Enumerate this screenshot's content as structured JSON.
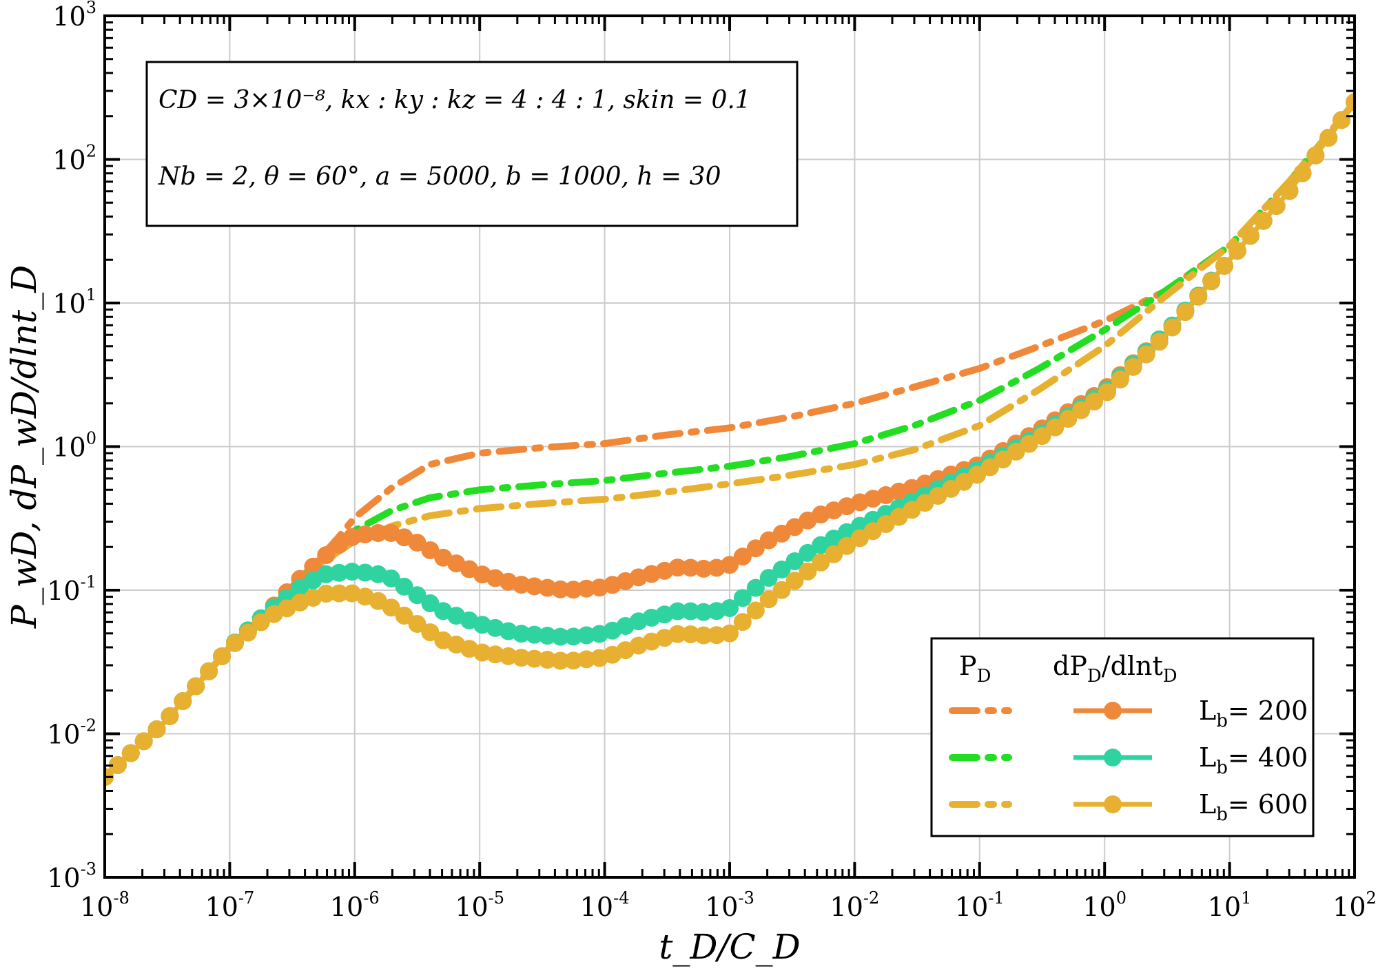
{
  "chart_data": {
    "type": "line",
    "xscale": "log",
    "yscale": "log",
    "xlim": [
      1e-08,
      100
    ],
    "ylim": [
      0.001,
      1000
    ],
    "grid": true,
    "x_ticks": [
      {
        "value": 1e-08,
        "base": "10",
        "exp": "-8"
      },
      {
        "value": 1e-07,
        "base": "10",
        "exp": "-7"
      },
      {
        "value": 1e-06,
        "base": "10",
        "exp": "-6"
      },
      {
        "value": 1e-05,
        "base": "10",
        "exp": "-5"
      },
      {
        "value": 0.0001,
        "base": "10",
        "exp": "-4"
      },
      {
        "value": 0.001,
        "base": "10",
        "exp": "-3"
      },
      {
        "value": 0.01,
        "base": "10",
        "exp": "-2"
      },
      {
        "value": 0.1,
        "base": "10",
        "exp": "-1"
      },
      {
        "value": 1,
        "base": "10",
        "exp": "0"
      },
      {
        "value": 10,
        "base": "10",
        "exp": "1"
      },
      {
        "value": 100,
        "base": "10",
        "exp": "2"
      }
    ],
    "y_ticks": [
      {
        "value": 0.001,
        "base": "10",
        "exp": "-3"
      },
      {
        "value": 0.01,
        "base": "10",
        "exp": "-2"
      },
      {
        "value": 0.1,
        "base": "10",
        "exp": "-1"
      },
      {
        "value": 1,
        "base": "10",
        "exp": "0"
      },
      {
        "value": 10,
        "base": "10",
        "exp": "1"
      },
      {
        "value": 100,
        "base": "10",
        "exp": "2"
      },
      {
        "value": 1000,
        "base": "10",
        "exp": "3"
      }
    ],
    "xlabel": "t_D/C_D",
    "ylabel": "P_wD, dP_wD/dlnt_D",
    "annotation_lines": [
      "CD = 3×10⁻⁸, kx : ky : kz = 4 : 4 : 1, skin = 0.1",
      "Nb = 2, θ = 60°, a = 5000, b = 1000, h = 30"
    ],
    "legend": {
      "placement": "bottom-right",
      "header_pd": {
        "main": "P",
        "sub": "D"
      },
      "header_dpd": {
        "main": "dP",
        "sub1": "D",
        "mid": "/dlnt",
        "sub2": "D"
      },
      "entries": [
        {
          "prefix": "L",
          "sub": "b",
          "value": "= 200"
        },
        {
          "prefix": "L",
          "sub": "b",
          "value": "= 400"
        },
        {
          "prefix": "L",
          "sub": "b",
          "value": "= 600"
        }
      ]
    },
    "series": [
      {
        "kind": "pressure",
        "style": "dash-dot",
        "color": "#F0883A",
        "x": [
          1e-08,
          3e-08,
          1e-07,
          2e-07,
          4e-07,
          7e-07,
          1e-06,
          2e-06,
          4e-06,
          1e-05,
          3e-05,
          0.0001,
          0.0003,
          0.001,
          0.003,
          0.01,
          0.03,
          0.1,
          0.3,
          1,
          3,
          10,
          30,
          100
        ],
        "y": [
          0.005,
          0.012,
          0.04,
          0.07,
          0.13,
          0.22,
          0.32,
          0.52,
          0.75,
          0.9,
          0.98,
          1.05,
          1.2,
          1.35,
          1.6,
          2.0,
          2.6,
          3.5,
          5.0,
          7.5,
          12,
          25,
          70,
          250
        ]
      },
      {
        "kind": "pressure",
        "style": "dash-dot",
        "color": "#22DD22",
        "x": [
          1e-08,
          3e-08,
          1e-07,
          2e-07,
          4e-07,
          7e-07,
          1e-06,
          2e-06,
          4e-06,
          1e-05,
          3e-05,
          0.0001,
          0.0003,
          0.001,
          0.003,
          0.01,
          0.03,
          0.1,
          0.3,
          1,
          3,
          10,
          30,
          100
        ],
        "y": [
          0.005,
          0.012,
          0.04,
          0.07,
          0.13,
          0.2,
          0.26,
          0.36,
          0.44,
          0.5,
          0.54,
          0.58,
          0.65,
          0.73,
          0.85,
          1.05,
          1.4,
          2.1,
          3.5,
          6.5,
          12,
          25,
          70,
          250
        ]
      },
      {
        "kind": "pressure",
        "style": "dash-dot",
        "color": "#E8B030",
        "x": [
          1e-08,
          3e-08,
          1e-07,
          2e-07,
          4e-07,
          7e-07,
          1e-06,
          2e-06,
          4e-06,
          1e-05,
          3e-05,
          0.0001,
          0.0003,
          0.001,
          0.003,
          0.01,
          0.03,
          0.1,
          0.3,
          1,
          3,
          10,
          30,
          100
        ],
        "y": [
          0.005,
          0.012,
          0.04,
          0.07,
          0.12,
          0.18,
          0.22,
          0.28,
          0.33,
          0.37,
          0.4,
          0.43,
          0.48,
          0.55,
          0.63,
          0.75,
          0.95,
          1.4,
          2.5,
          5.0,
          11,
          25,
          70,
          250
        ]
      },
      {
        "kind": "derivative",
        "style": "line-markers",
        "color": "#F0883A",
        "x": [
          1e-08,
          3e-08,
          1e-07,
          2e-07,
          4e-07,
          7e-07,
          1e-06,
          1.5e-06,
          2e-06,
          3e-06,
          5e-06,
          1e-05,
          2e-05,
          5e-05,
          0.0001,
          0.0002,
          0.0004,
          0.0007,
          0.001,
          0.002,
          0.005,
          0.01,
          0.03,
          0.1,
          0.3,
          1,
          3,
          10,
          30,
          100
        ],
        "y": [
          0.005,
          0.012,
          0.04,
          0.07,
          0.13,
          0.2,
          0.24,
          0.25,
          0.25,
          0.22,
          0.17,
          0.13,
          0.11,
          0.1,
          0.105,
          0.125,
          0.145,
          0.14,
          0.15,
          0.22,
          0.33,
          0.4,
          0.52,
          0.75,
          1.3,
          2.5,
          6.0,
          20,
          60,
          250
        ]
      },
      {
        "kind": "derivative",
        "style": "line-markers",
        "color": "#2ED3A0",
        "x": [
          1e-08,
          3e-08,
          1e-07,
          2e-07,
          4e-07,
          6e-07,
          1e-06,
          1.5e-06,
          2e-06,
          3e-06,
          5e-06,
          1e-05,
          2e-05,
          5e-05,
          0.0001,
          0.0002,
          0.0004,
          0.0007,
          0.001,
          0.002,
          0.005,
          0.01,
          0.03,
          0.1,
          0.3,
          1,
          3,
          10,
          30,
          100
        ],
        "y": [
          0.005,
          0.012,
          0.04,
          0.07,
          0.11,
          0.13,
          0.135,
          0.13,
          0.12,
          0.095,
          0.072,
          0.058,
          0.05,
          0.047,
          0.05,
          0.062,
          0.072,
          0.07,
          0.075,
          0.12,
          0.2,
          0.27,
          0.42,
          0.7,
          1.2,
          2.4,
          6.0,
          20,
          60,
          250
        ]
      },
      {
        "kind": "derivative",
        "style": "line-markers",
        "color": "#E8B030",
        "x": [
          1e-08,
          3e-08,
          1e-07,
          2e-07,
          4e-07,
          6e-07,
          1e-06,
          1.5e-06,
          2e-06,
          3e-06,
          5e-06,
          1e-05,
          2e-05,
          5e-05,
          0.0001,
          0.0002,
          0.0004,
          0.0007,
          0.001,
          0.002,
          0.005,
          0.01,
          0.03,
          0.1,
          0.3,
          1,
          3,
          10,
          30,
          100
        ],
        "y": [
          0.005,
          0.012,
          0.04,
          0.065,
          0.085,
          0.095,
          0.095,
          0.085,
          0.075,
          0.06,
          0.045,
          0.037,
          0.034,
          0.032,
          0.034,
          0.042,
          0.05,
          0.048,
          0.05,
          0.085,
          0.15,
          0.22,
          0.37,
          0.65,
          1.15,
          2.3,
          5.8,
          20,
          60,
          250
        ]
      }
    ]
  }
}
